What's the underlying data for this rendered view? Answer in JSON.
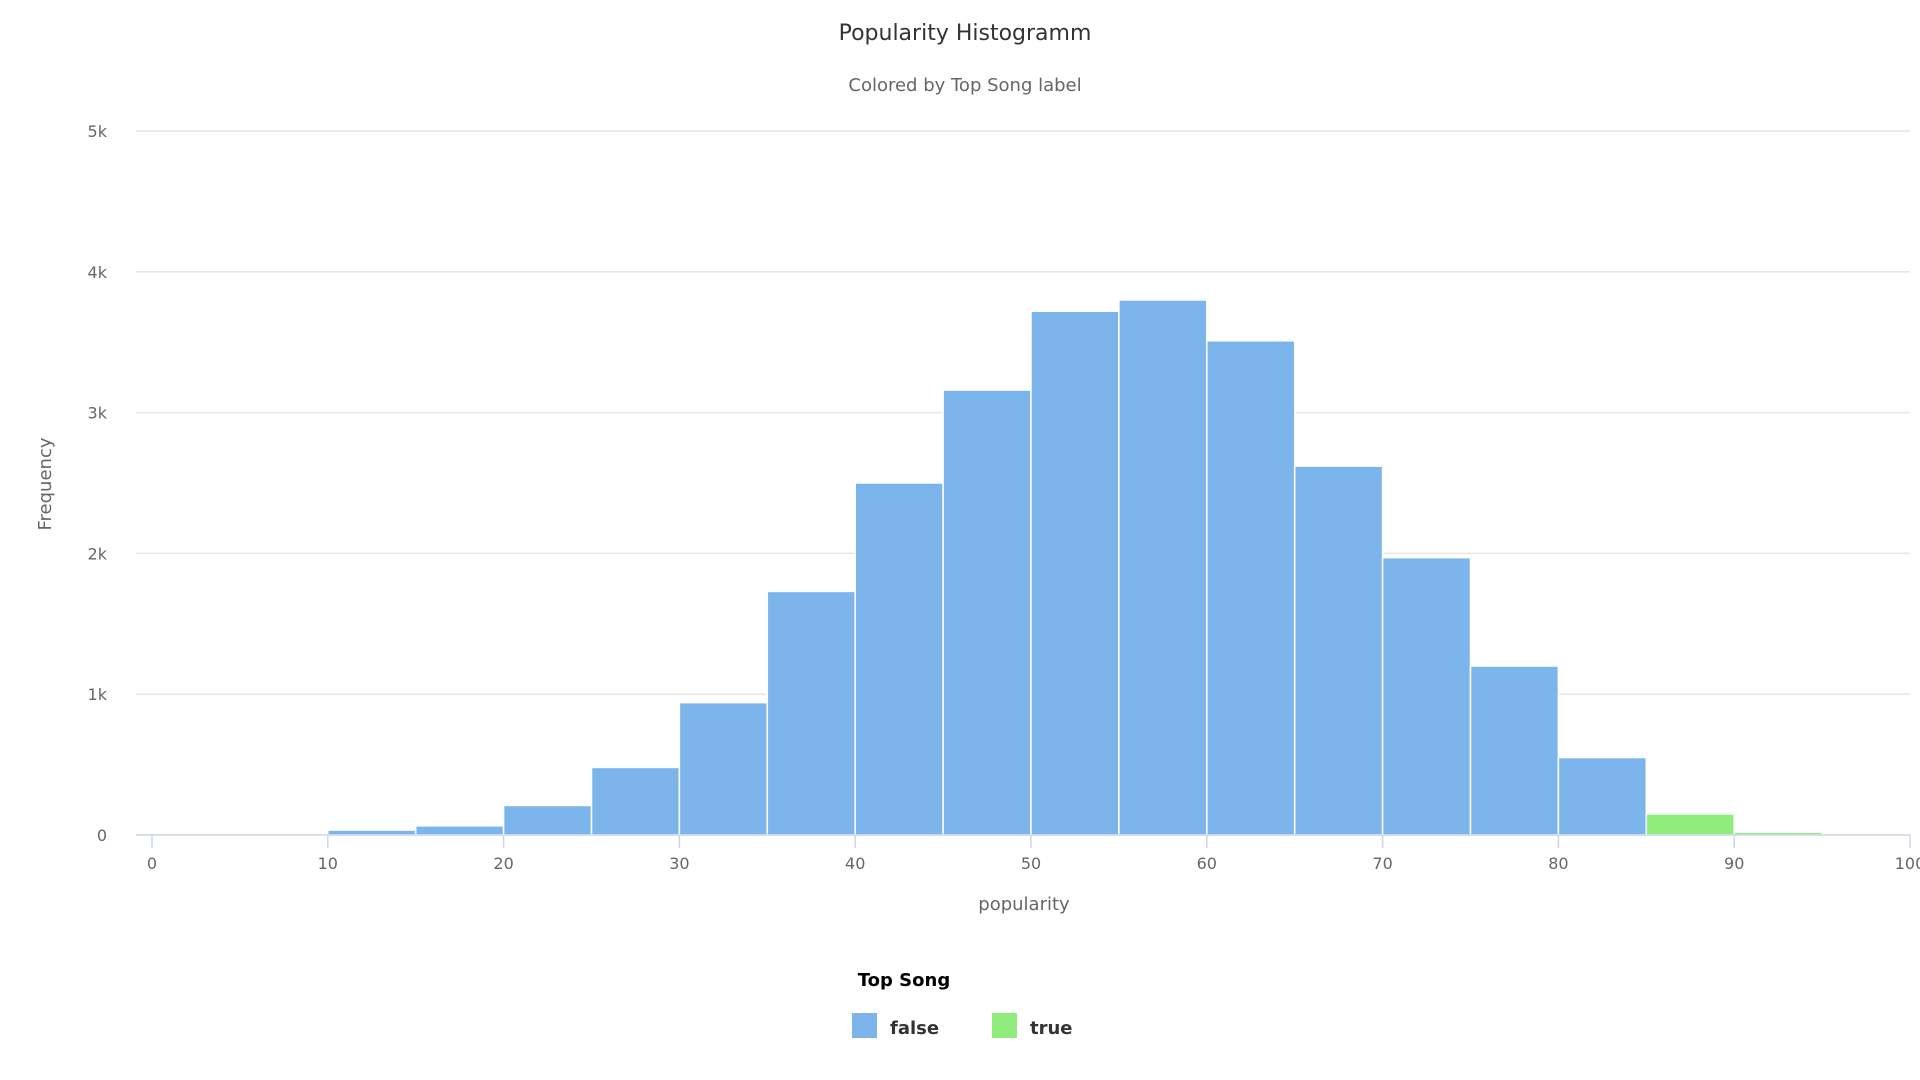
{
  "chart_data": {
    "type": "bar",
    "title": "Popularity Histogramm",
    "subtitle": "Colored by Top Song label",
    "xlabel": "popularity",
    "ylabel": "Frequency",
    "xlim": [
      0,
      100
    ],
    "ylim": [
      0,
      5000
    ],
    "x_ticks": [
      0,
      10,
      20,
      30,
      40,
      50,
      60,
      70,
      80,
      90,
      100
    ],
    "y_ticks": [
      0,
      1000,
      2000,
      3000,
      4000,
      5000
    ],
    "y_tick_labels": [
      "0",
      "1k",
      "2k",
      "3k",
      "4k",
      "5k"
    ],
    "grid": true,
    "legend": {
      "title": "Top Song",
      "position": "bottom-center"
    },
    "series": [
      {
        "name": "false",
        "color": "#7cb5ec",
        "bins": [
          {
            "start": 0,
            "end": 5,
            "value": 0
          },
          {
            "start": 5,
            "end": 10,
            "value": 0
          },
          {
            "start": 10,
            "end": 15,
            "value": 35
          },
          {
            "start": 15,
            "end": 20,
            "value": 65
          },
          {
            "start": 20,
            "end": 25,
            "value": 210
          },
          {
            "start": 25,
            "end": 30,
            "value": 480
          },
          {
            "start": 30,
            "end": 35,
            "value": 940
          },
          {
            "start": 35,
            "end": 40,
            "value": 1730
          },
          {
            "start": 40,
            "end": 45,
            "value": 2500
          },
          {
            "start": 45,
            "end": 50,
            "value": 3160
          },
          {
            "start": 50,
            "end": 55,
            "value": 3720
          },
          {
            "start": 55,
            "end": 60,
            "value": 3800
          },
          {
            "start": 60,
            "end": 65,
            "value": 3510
          },
          {
            "start": 65,
            "end": 70,
            "value": 2620
          },
          {
            "start": 70,
            "end": 75,
            "value": 1970
          },
          {
            "start": 75,
            "end": 80,
            "value": 1200
          },
          {
            "start": 80,
            "end": 85,
            "value": 550
          }
        ]
      },
      {
        "name": "true",
        "color": "#90ed7d",
        "bins": [
          {
            "start": 85,
            "end": 90,
            "value": 150
          },
          {
            "start": 90,
            "end": 95,
            "value": 20
          }
        ]
      }
    ]
  }
}
